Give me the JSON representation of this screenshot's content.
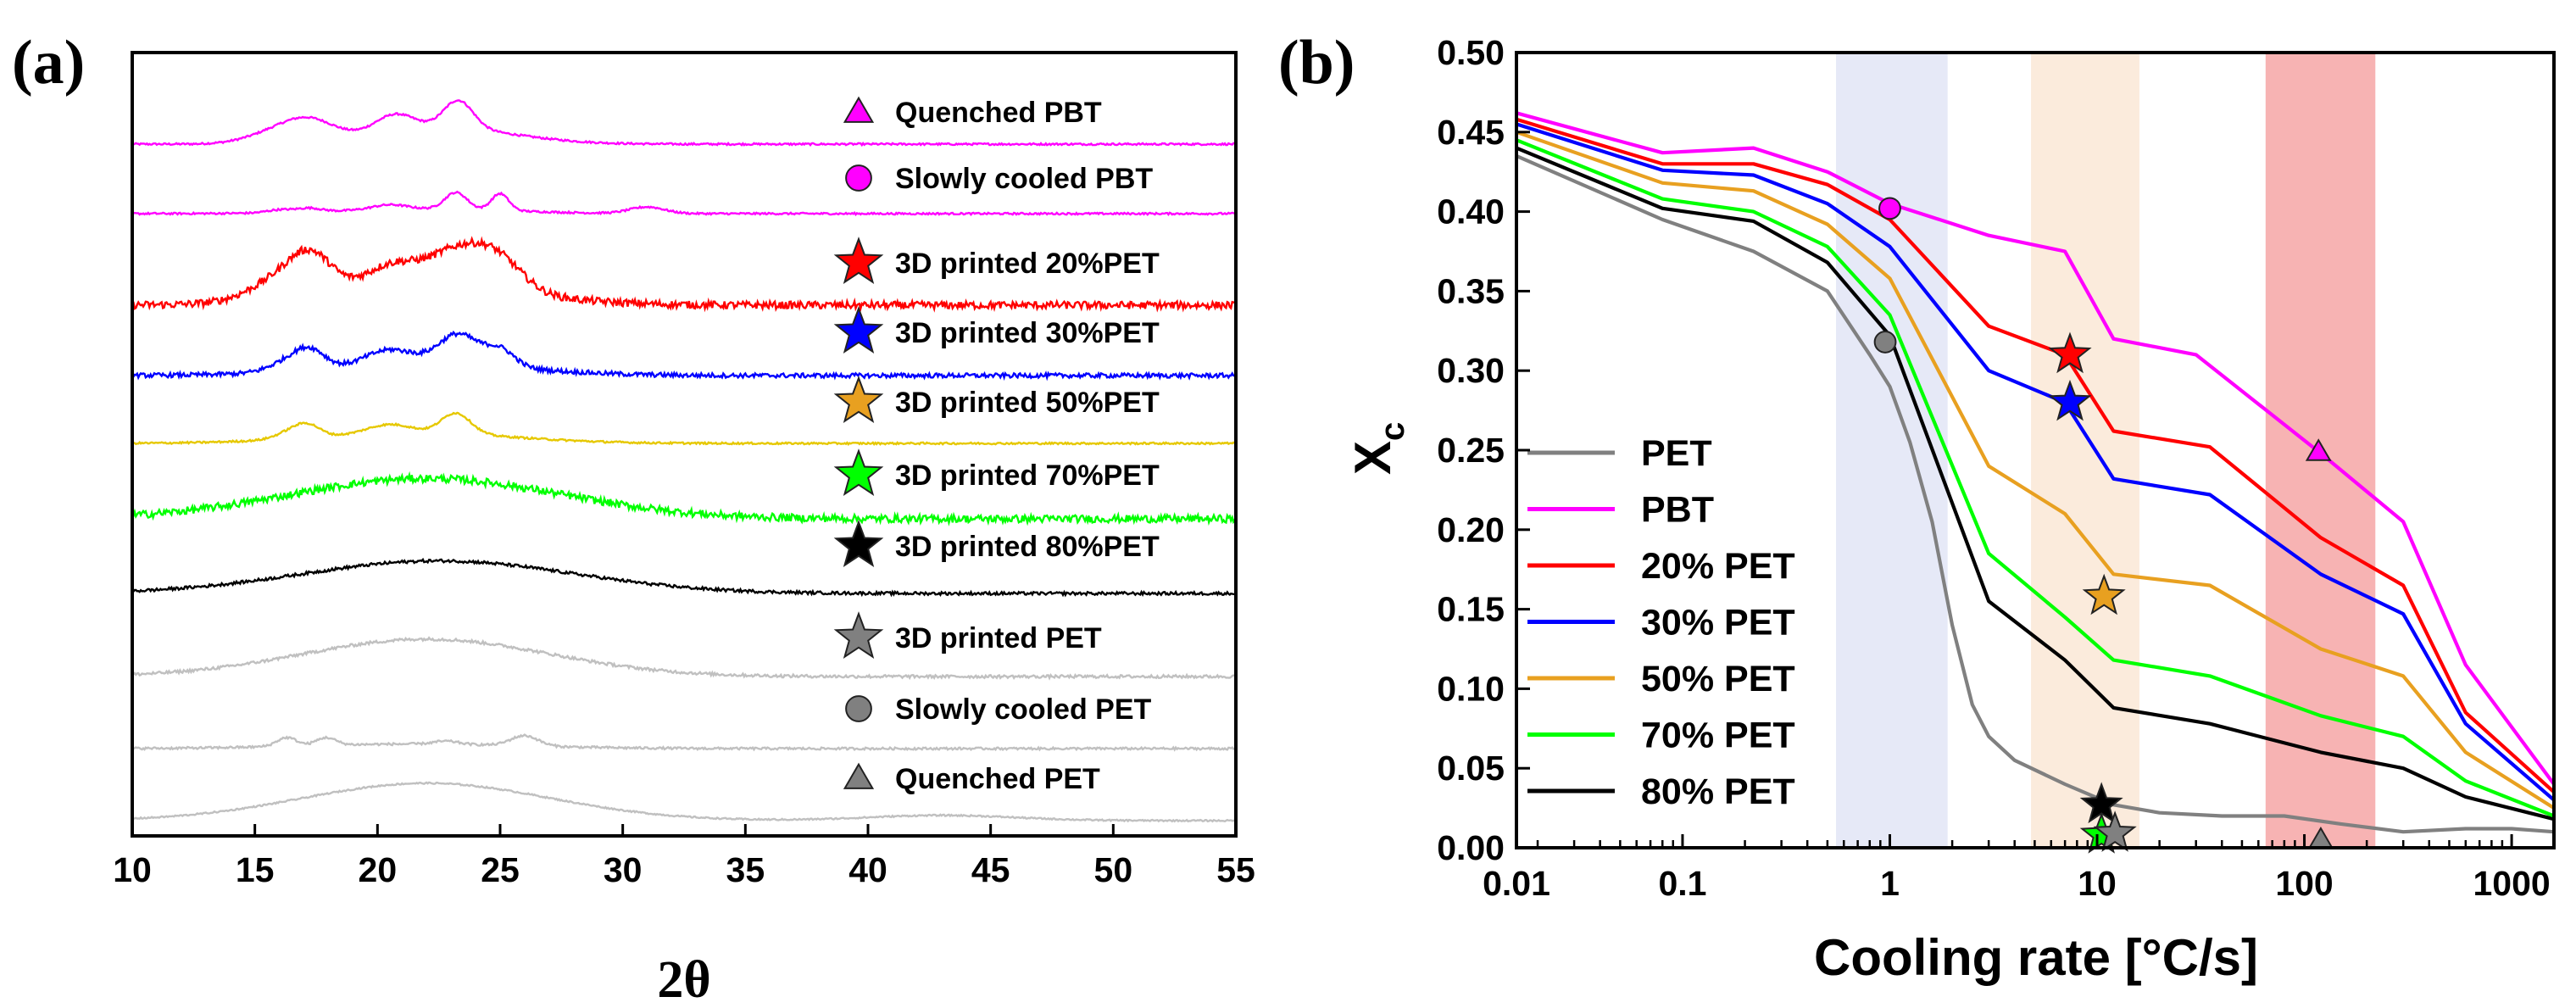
{
  "chart_data": [
    {
      "panel": "(a)",
      "type": "line",
      "xlabel": "2θ",
      "ylabel": "",
      "xlim": [
        10,
        55
      ],
      "xticks": [
        "10",
        "15",
        "20",
        "25",
        "30",
        "35",
        "40",
        "45",
        "50",
        "55"
      ],
      "series": [
        {
          "name": "Quenched PBT",
          "marker": "triangle",
          "color": "#ff00ff",
          "noise": 0.5,
          "peaks": [
            [
              16,
              1.2,
              0.25
            ],
            [
              17.3,
              1.0,
              0.35
            ],
            [
              20.7,
              0.8,
              0.35
            ],
            [
              23.3,
              0.6,
              0.6
            ],
            [
              22.5,
              3.0,
              0.35
            ]
          ]
        },
        {
          "name": "Slowly cooled PBT",
          "marker": "circle",
          "color": "#ff00ff",
          "noise": 0.5,
          "peaks": [
            [
              16,
              0.5,
              0.15
            ],
            [
              17.2,
              0.5,
              0.2
            ],
            [
              20.5,
              0.7,
              0.25
            ],
            [
              23.2,
              0.45,
              0.9
            ],
            [
              25,
              0.35,
              0.9
            ],
            [
              31,
              0.7,
              0.35
            ],
            [
              22,
              3.5,
              0.25
            ]
          ]
        },
        {
          "name": "3D printed 20%PET",
          "marker": "star",
          "color": "#ff0000",
          "noise": 2.0,
          "peaks": [
            [
              16.5,
              1.4,
              0.5
            ],
            [
              17.3,
              0.8,
              0.45
            ],
            [
              20.5,
              1.0,
              0.4
            ],
            [
              23.3,
              1.3,
              0.7
            ],
            [
              25,
              1.0,
              0.45
            ],
            [
              22,
              4.0,
              0.35
            ]
          ]
        },
        {
          "name": "3D printed 30%PET",
          "marker": "star",
          "color": "#0000ff",
          "noise": 1.2,
          "peaks": [
            [
              16.5,
              0.8,
              0.3
            ],
            [
              17.3,
              0.6,
              0.4
            ],
            [
              20.5,
              1.0,
              0.4
            ],
            [
              23.3,
              0.8,
              0.8
            ],
            [
              25,
              0.6,
              0.45
            ],
            [
              22,
              4.0,
              0.3
            ]
          ]
        },
        {
          "name": "3D printed 50%PET",
          "marker": "star",
          "color": "#e6c800",
          "noise": 0.5,
          "peaks": [
            [
              16.5,
              0.6,
              0.25
            ],
            [
              17.2,
              0.5,
              0.35
            ],
            [
              20.5,
              0.9,
              0.3
            ],
            [
              23.2,
              0.6,
              0.7
            ],
            [
              21.5,
              4.0,
              0.35
            ]
          ]
        },
        {
          "name": "3D printed 70%PET",
          "marker": "star",
          "color": "#00ff00",
          "noise": 2.0,
          "peaks": [
            [
              22,
              5.5,
              0.7
            ]
          ]
        },
        {
          "name": "3D printed 80%PET",
          "marker": "star",
          "color": "#000000",
          "noise": 0.8,
          "peaks": [
            [
              22.5,
              5.5,
              0.7
            ]
          ]
        },
        {
          "name": "3D printed PET",
          "marker": "star",
          "color": "#c0c0c0",
          "noise": 0.8,
          "peaks": [
            [
              22,
              5.0,
              0.85
            ]
          ]
        },
        {
          "name": "Slowly cooled PET",
          "marker": "circle",
          "color": "#c0c0c0",
          "noise": 0.6,
          "peaks": [
            [
              16.3,
              0.4,
              0.85
            ],
            [
              17.9,
              0.4,
              0.75
            ],
            [
              22.8,
              0.5,
              0.3
            ],
            [
              26,
              0.55,
              1.0
            ],
            [
              21.5,
              4.5,
              0.45
            ]
          ]
        },
        {
          "name": "Quenched PET",
          "marker": "triangle",
          "color": "#c0c0c0",
          "noise": 0.4,
          "peaks": [
            [
              22,
              5.0,
              0.85
            ],
            [
              43,
              3.0,
              0.12
            ]
          ]
        }
      ]
    },
    {
      "panel": "(b)",
      "type": "line",
      "xscale": "log",
      "xlabel": "Cooling rate [°C/s]",
      "ylabel": "X",
      "ylabel_sub": "c",
      "xlim": [
        0.0158,
        1600
      ],
      "ylim": [
        0,
        0.5
      ],
      "xticks": [
        {
          "v": 0.01,
          "label": "0.01"
        },
        {
          "v": 0.1,
          "label": "0.1"
        },
        {
          "v": 1,
          "label": "1"
        },
        {
          "v": 10,
          "label": "10"
        },
        {
          "v": 100,
          "label": "100"
        },
        {
          "v": 1000,
          "label": "1000"
        }
      ],
      "yticks": [
        "0.00",
        "0.05",
        "0.10",
        "0.15",
        "0.20",
        "0.25",
        "0.30",
        "0.35",
        "0.40",
        "0.45",
        "0.50"
      ],
      "bands": [
        {
          "x0": 0.55,
          "x1": 1.9,
          "color": "#e6e9f7"
        },
        {
          "x0": 4.8,
          "x1": 16,
          "color": "#fbebdc"
        },
        {
          "x0": 65,
          "x1": 220,
          "color": "#f7b3b3"
        }
      ],
      "series": [
        {
          "name": "PET",
          "color": "#808080",
          "points": [
            [
              0.0158,
              0.435
            ],
            [
              0.08,
              0.395
            ],
            [
              0.22,
              0.375
            ],
            [
              0.5,
              0.35
            ],
            [
              0.8,
              0.31
            ],
            [
              1.0,
              0.29
            ],
            [
              1.25,
              0.255
            ],
            [
              1.6,
              0.205
            ],
            [
              2.0,
              0.14
            ],
            [
              2.5,
              0.09
            ],
            [
              3.0,
              0.07
            ],
            [
              4,
              0.055
            ],
            [
              7,
              0.04
            ],
            [
              12,
              0.027
            ],
            [
              20,
              0.022
            ],
            [
              40,
              0.02
            ],
            [
              80,
              0.02
            ],
            [
              150,
              0.015
            ],
            [
              300,
              0.01
            ],
            [
              600,
              0.012
            ],
            [
              1000,
              0.012
            ],
            [
              1600,
              0.01
            ]
          ]
        },
        {
          "name": "PBT",
          "color": "#ff00ff",
          "points": [
            [
              0.0158,
              0.462
            ],
            [
              0.08,
              0.437
            ],
            [
              0.22,
              0.44
            ],
            [
              0.5,
              0.425
            ],
            [
              1,
              0.405
            ],
            [
              3,
              0.385
            ],
            [
              7,
              0.375
            ],
            [
              12,
              0.32
            ],
            [
              30,
              0.31
            ],
            [
              120,
              0.248
            ],
            [
              300,
              0.205
            ],
            [
              600,
              0.115
            ],
            [
              1600,
              0.04
            ]
          ]
        },
        {
          "name": "20% PET",
          "color": "#ff0000",
          "points": [
            [
              0.0158,
              0.458
            ],
            [
              0.08,
              0.43
            ],
            [
              0.22,
              0.43
            ],
            [
              0.5,
              0.417
            ],
            [
              1,
              0.395
            ],
            [
              3,
              0.328
            ],
            [
              7,
              0.31
            ],
            [
              12,
              0.262
            ],
            [
              35,
              0.252
            ],
            [
              120,
              0.195
            ],
            [
              300,
              0.165
            ],
            [
              600,
              0.085
            ],
            [
              1600,
              0.035
            ]
          ]
        },
        {
          "name": "30% PET",
          "color": "#0000ff",
          "points": [
            [
              0.0158,
              0.455
            ],
            [
              0.08,
              0.426
            ],
            [
              0.22,
              0.423
            ],
            [
              0.5,
              0.405
            ],
            [
              1,
              0.378
            ],
            [
              3,
              0.3
            ],
            [
              7,
              0.28
            ],
            [
              12,
              0.232
            ],
            [
              35,
              0.222
            ],
            [
              120,
              0.172
            ],
            [
              300,
              0.147
            ],
            [
              600,
              0.078
            ],
            [
              1600,
              0.03
            ]
          ]
        },
        {
          "name": "50% PET",
          "color": "#e8a020",
          "points": [
            [
              0.0158,
              0.45
            ],
            [
              0.08,
              0.418
            ],
            [
              0.22,
              0.413
            ],
            [
              0.5,
              0.392
            ],
            [
              1,
              0.358
            ],
            [
              3,
              0.24
            ],
            [
              7,
              0.21
            ],
            [
              12,
              0.172
            ],
            [
              35,
              0.165
            ],
            [
              120,
              0.125
            ],
            [
              300,
              0.108
            ],
            [
              600,
              0.06
            ],
            [
              1600,
              0.025
            ]
          ]
        },
        {
          "name": "70% PET",
          "color": "#00ff00",
          "points": [
            [
              0.0158,
              0.445
            ],
            [
              0.08,
              0.408
            ],
            [
              0.22,
              0.4
            ],
            [
              0.5,
              0.378
            ],
            [
              1,
              0.335
            ],
            [
              3,
              0.185
            ],
            [
              7,
              0.145
            ],
            [
              12,
              0.118
            ],
            [
              35,
              0.108
            ],
            [
              120,
              0.083
            ],
            [
              300,
              0.07
            ],
            [
              600,
              0.042
            ],
            [
              1600,
              0.02
            ]
          ]
        },
        {
          "name": "80% PET",
          "color": "#000000",
          "points": [
            [
              0.0158,
              0.44
            ],
            [
              0.08,
              0.402
            ],
            [
              0.22,
              0.394
            ],
            [
              0.5,
              0.368
            ],
            [
              1,
              0.322
            ],
            [
              3,
              0.155
            ],
            [
              7,
              0.118
            ],
            [
              12,
              0.088
            ],
            [
              35,
              0.078
            ],
            [
              120,
              0.06
            ],
            [
              300,
              0.05
            ],
            [
              600,
              0.032
            ],
            [
              1600,
              0.018
            ]
          ]
        }
      ],
      "markers": [
        {
          "series": "PBT",
          "shape": "circle",
          "x": 1,
          "y": 0.402,
          "color": "#ff00ff"
        },
        {
          "series": "PET",
          "shape": "circle",
          "x": 0.95,
          "y": 0.318,
          "color": "#808080"
        },
        {
          "series": "20% PET",
          "shape": "star",
          "x": 7.4,
          "y": 0.31,
          "color": "#ff0000"
        },
        {
          "series": "30% PET",
          "shape": "star",
          "x": 7.4,
          "y": 0.28,
          "color": "#0000ff"
        },
        {
          "series": "50% PET",
          "shape": "star",
          "x": 10.8,
          "y": 0.158,
          "color": "#e8a020"
        },
        {
          "series": "PBT",
          "shape": "triangle",
          "x": 117,
          "y": 0.249,
          "color": "#ff00ff"
        },
        {
          "series": "80% PET",
          "shape": "star",
          "x": 10.5,
          "y": 0.027,
          "color": "#000000"
        },
        {
          "series": "70% PET",
          "shape": "star",
          "x": 10.5,
          "y": 0.008,
          "color": "#00ff00"
        },
        {
          "series": "PET",
          "shape": "star",
          "x": 12.2,
          "y": 0.009,
          "color": "#808080"
        },
        {
          "series": "PET",
          "shape": "triangle",
          "x": 120,
          "y": 0.005,
          "color": "#808080"
        }
      ]
    }
  ]
}
